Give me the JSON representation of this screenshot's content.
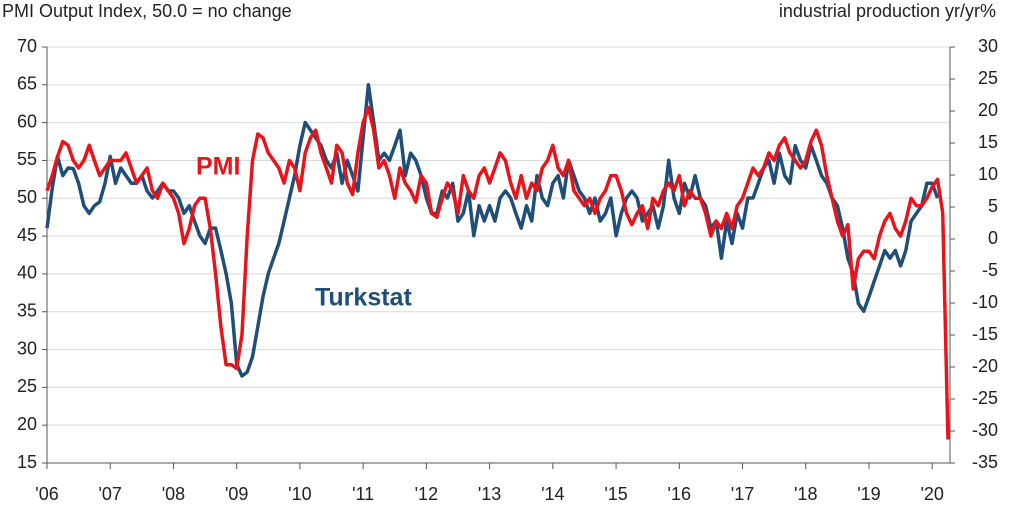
{
  "chart_data": {
    "type": "line",
    "title": "PMI Output Index, 50.0 = no change",
    "y2_title": "industrial production yr/yr%",
    "categories": [
      "'06",
      null,
      null,
      null,
      null,
      null,
      null,
      null,
      null,
      null,
      null,
      null,
      "'07",
      null,
      null,
      null,
      null,
      null,
      null,
      null,
      null,
      null,
      null,
      null,
      "'08",
      null,
      null,
      null,
      null,
      null,
      null,
      null,
      null,
      null,
      null,
      null,
      "'09",
      null,
      null,
      null,
      null,
      null,
      null,
      null,
      null,
      null,
      null,
      null,
      "'10",
      null,
      null,
      null,
      null,
      null,
      null,
      null,
      null,
      null,
      null,
      null,
      "'11",
      null,
      null,
      null,
      null,
      null,
      null,
      null,
      null,
      null,
      null,
      null,
      "'12",
      null,
      null,
      null,
      null,
      null,
      null,
      null,
      null,
      null,
      null,
      null,
      "'13",
      null,
      null,
      null,
      null,
      null,
      null,
      null,
      null,
      null,
      null,
      null,
      "'14",
      null,
      null,
      null,
      null,
      null,
      null,
      null,
      null,
      null,
      null,
      null,
      "'15",
      null,
      null,
      null,
      null,
      null,
      null,
      null,
      null,
      null,
      null,
      null,
      "'16",
      null,
      null,
      null,
      null,
      null,
      null,
      null,
      null,
      null,
      null,
      null,
      "'17",
      null,
      null,
      null,
      null,
      null,
      null,
      null,
      null,
      null,
      null,
      null,
      "'18",
      null,
      null,
      null,
      null,
      null,
      null,
      null,
      null,
      null,
      null,
      null,
      "'19",
      null,
      null,
      null,
      null,
      null,
      null,
      null,
      null,
      null,
      null,
      null,
      "'20",
      null,
      null,
      null
    ],
    "series": [
      {
        "name": "PMI",
        "color": "#e8141b",
        "values": [
          51,
          53,
          55.5,
          57.5,
          57,
          55,
          54,
          55,
          57,
          55,
          53,
          54,
          55,
          55,
          55,
          56,
          54,
          52,
          53,
          54,
          51,
          50,
          52,
          51,
          50,
          48,
          44,
          46,
          49,
          50,
          50,
          46,
          40,
          33,
          28,
          28,
          27.5,
          32,
          45,
          55,
          58.5,
          58,
          56,
          55,
          54,
          52,
          55,
          54,
          51,
          56,
          58,
          59,
          56,
          54,
          52,
          57,
          56,
          52,
          50.5,
          56,
          60,
          62,
          59,
          54,
          55,
          53,
          50,
          54,
          52,
          51,
          49.5,
          53,
          52,
          48,
          47.5,
          50,
          52,
          51,
          48,
          53,
          51,
          50,
          53,
          54,
          52,
          54,
          56,
          55,
          52,
          50,
          53,
          50,
          52,
          51,
          54,
          55,
          57,
          54,
          53,
          55,
          51,
          50,
          49,
          50,
          48,
          50,
          51,
          53,
          53,
          51,
          48,
          46.5,
          48,
          49,
          46,
          50,
          49,
          51,
          52,
          51,
          53,
          49,
          51,
          50,
          50,
          48,
          45,
          47,
          46,
          48,
          46,
          49,
          50,
          52,
          54,
          53,
          54,
          56,
          55,
          57,
          58,
          56,
          55,
          54,
          55,
          57.5,
          59,
          57,
          53,
          50,
          47,
          45,
          46.5,
          38,
          42,
          43,
          43,
          42,
          45,
          47,
          48,
          46,
          45,
          47,
          50,
          49,
          49,
          50,
          51.5,
          52.5,
          48.1,
          18.1
        ]
      },
      {
        "name": "Turkstat",
        "color": "#1f4e79",
        "axis": "y2",
        "values": [
          1.7,
          8,
          12.9,
          9.9,
          11.1,
          11,
          8.7,
          5.2,
          4.0,
          5.2,
          5.8,
          8.7,
          12.9,
          8.7,
          11.1,
          9.9,
          8.7,
          8.7,
          9.9,
          7.5,
          6.4,
          7.5,
          8.7,
          7.5,
          7.5,
          6.4,
          4.0,
          5.2,
          2.8,
          0.5,
          -0.7,
          1.7,
          1.7,
          -1.8,
          -5.4,
          -10.1,
          -19.6,
          -21.4,
          -20.8,
          -18.4,
          -13.7,
          -9.0,
          -5.4,
          -3.0,
          -0.7,
          2.8,
          6.4,
          9.9,
          14.6,
          18.2,
          17,
          15.8,
          14.6,
          12.3,
          11.1,
          13.4,
          8.7,
          12.3,
          9.9,
          7.5,
          15.8,
          24.1,
          18.2,
          12.3,
          13.4,
          12.3,
          14.6,
          17.0,
          9.9,
          13.4,
          12.3,
          9.9,
          6.4,
          4.0,
          4.0,
          7.5,
          6.4,
          8.7,
          2.8,
          4.0,
          7.5,
          0.5,
          5.2,
          2.8,
          5.2,
          2.8,
          6.4,
          7.5,
          6.4,
          4.0,
          1.7,
          5.2,
          2.8,
          9.9,
          6.4,
          5.2,
          8.7,
          9.9,
          6.4,
          12.3,
          9.9,
          7.5,
          6.4,
          4.0,
          6.4,
          2.8,
          4.0,
          6.4,
          0.5,
          4.0,
          6.4,
          7.5,
          6.4,
          2.8,
          4.0,
          5.2,
          1.7,
          5.2,
          12.3,
          6.4,
          4.0,
          8.7,
          6.4,
          9.9,
          6.4,
          5.2,
          1.7,
          2.8,
          -3.0,
          2.8,
          -0.7,
          4.0,
          1.7,
          6.4,
          6.4,
          8.7,
          11.1,
          12.3,
          8.7,
          13.4,
          9.9,
          8.7,
          14.6,
          12.3,
          11.1,
          14.6,
          12.3,
          9.9,
          8.7,
          6.4,
          5.2,
          1.7,
          -3.0,
          -5.4,
          -10.1,
          -11.3,
          -9.0,
          -6.6,
          -4.2,
          -1.8,
          -3.0,
          -1.8,
          -4.2,
          -1.8,
          2.8,
          4.0,
          5.2,
          8.7,
          8.7,
          6.4,
          null,
          null
        ]
      }
    ],
    "ylim": [
      15,
      70
    ],
    "yticks": [
      15,
      20,
      25,
      30,
      35,
      40,
      45,
      50,
      55,
      60,
      65,
      70
    ],
    "y2lim": [
      -35,
      30
    ],
    "y2ticks": [
      -35,
      -30,
      -25,
      -20,
      -15,
      -10,
      -5,
      0,
      5,
      10,
      15,
      20,
      25,
      30
    ],
    "grid": true
  }
}
